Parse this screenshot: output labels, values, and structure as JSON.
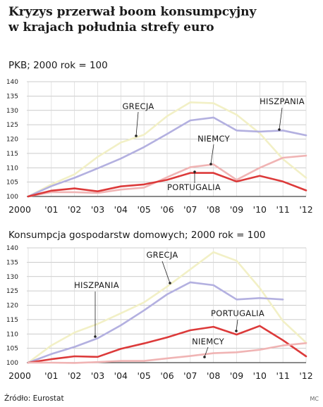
{
  "title_line1": "Kryzys przerwał boom konsumpcyjny",
  "title_line2": "w krajach południa strefy euro",
  "source": "Źródło: Eurostat",
  "credit": "MC",
  "colors": {
    "grecja": "#f2f0c6",
    "hiszpania": "#b3b0e0",
    "niemcy": "#f0b4b4",
    "portugalia": "#dc3a3a",
    "grid": "#bbbbbb"
  },
  "chart_data": [
    {
      "type": "line",
      "title": "PKB; 2000 rok = 100",
      "x": [
        "2000",
        "'01",
        "'02",
        "'03",
        "'04",
        "'05",
        "'06",
        "'07",
        "'08",
        "'09",
        "'10",
        "'11",
        "'12"
      ],
      "ylim": [
        100,
        140
      ],
      "yticks": [
        100,
        105,
        110,
        115,
        120,
        125,
        130,
        135,
        140
      ],
      "grid": true,
      "series": [
        {
          "name": "GRECJA",
          "color": "#f2f0c6",
          "values": [
            100,
            104.2,
            107.7,
            113.8,
            118.8,
            121.5,
            128.0,
            132.8,
            132.5,
            128.5,
            122.0,
            113.0,
            106.5
          ]
        },
        {
          "name": "HISZPANIA",
          "color": "#b3b0e0",
          "values": [
            100,
            103.6,
            106.5,
            109.8,
            113.2,
            117.2,
            121.8,
            126.5,
            127.5,
            123.0,
            122.6,
            123.0,
            121.3
          ]
        },
        {
          "name": "NIEMCY",
          "color": "#f0b4b4",
          "values": [
            100,
            101.5,
            101.5,
            101.2,
            102.4,
            103.1,
            106.7,
            110.2,
            111.2,
            105.8,
            110.0,
            113.5,
            114.2
          ]
        },
        {
          "name": "PORTUGALIA",
          "color": "#dc3a3a",
          "values": [
            100,
            102.0,
            102.8,
            101.8,
            103.5,
            104.2,
            105.8,
            108.2,
            108.2,
            105.2,
            107.2,
            105.2,
            102.1
          ]
        }
      ],
      "annotations": [
        "GRECJA",
        "HISZPANIA",
        "NIEMCY",
        "PORTUGALIA"
      ]
    },
    {
      "type": "line",
      "title": "Konsumpcja gospodarstw domowych; 2000 rok = 100",
      "x": [
        "2000",
        "'01",
        "'02",
        "'03",
        "'04",
        "'05",
        "'06",
        "'07",
        "'08",
        "'09",
        "'10",
        "'11",
        "'12"
      ],
      "ylim": [
        100,
        140
      ],
      "yticks": [
        100,
        105,
        110,
        115,
        120,
        125,
        130,
        135,
        140
      ],
      "grid": true,
      "series": [
        {
          "name": "GRECJA",
          "color": "#f2f0c6",
          "values": [
            100,
            106.0,
            110.5,
            113.5,
            117.2,
            121.0,
            126.5,
            132.5,
            138.5,
            135.5,
            126.0,
            114.5,
            107.0
          ]
        },
        {
          "name": "HISZPANIA",
          "color": "#b3b0e0",
          "values": [
            100,
            103.0,
            105.5,
            108.5,
            113.0,
            118.2,
            123.8,
            128.0,
            127.0,
            122.0,
            122.5,
            122.0,
            null
          ]
        },
        {
          "name": "PORTUGALIA",
          "color": "#dc3a3a",
          "values": [
            100,
            101.2,
            102.2,
            102.0,
            104.8,
            106.7,
            108.8,
            111.3,
            112.5,
            109.8,
            112.8,
            107.8,
            102.2
          ]
        },
        {
          "name": "NIEMCY",
          "color": "#f0b4b4",
          "values": [
            100,
            100.0,
            99.9,
            100.2,
            100.6,
            100.6,
            101.5,
            102.3,
            103.3,
            103.6,
            104.5,
            106.0,
            106.8
          ]
        }
      ],
      "annotations": [
        "GRECJA",
        "HISZPANIA",
        "PORTUGALIA",
        "NIEMCY"
      ]
    }
  ]
}
